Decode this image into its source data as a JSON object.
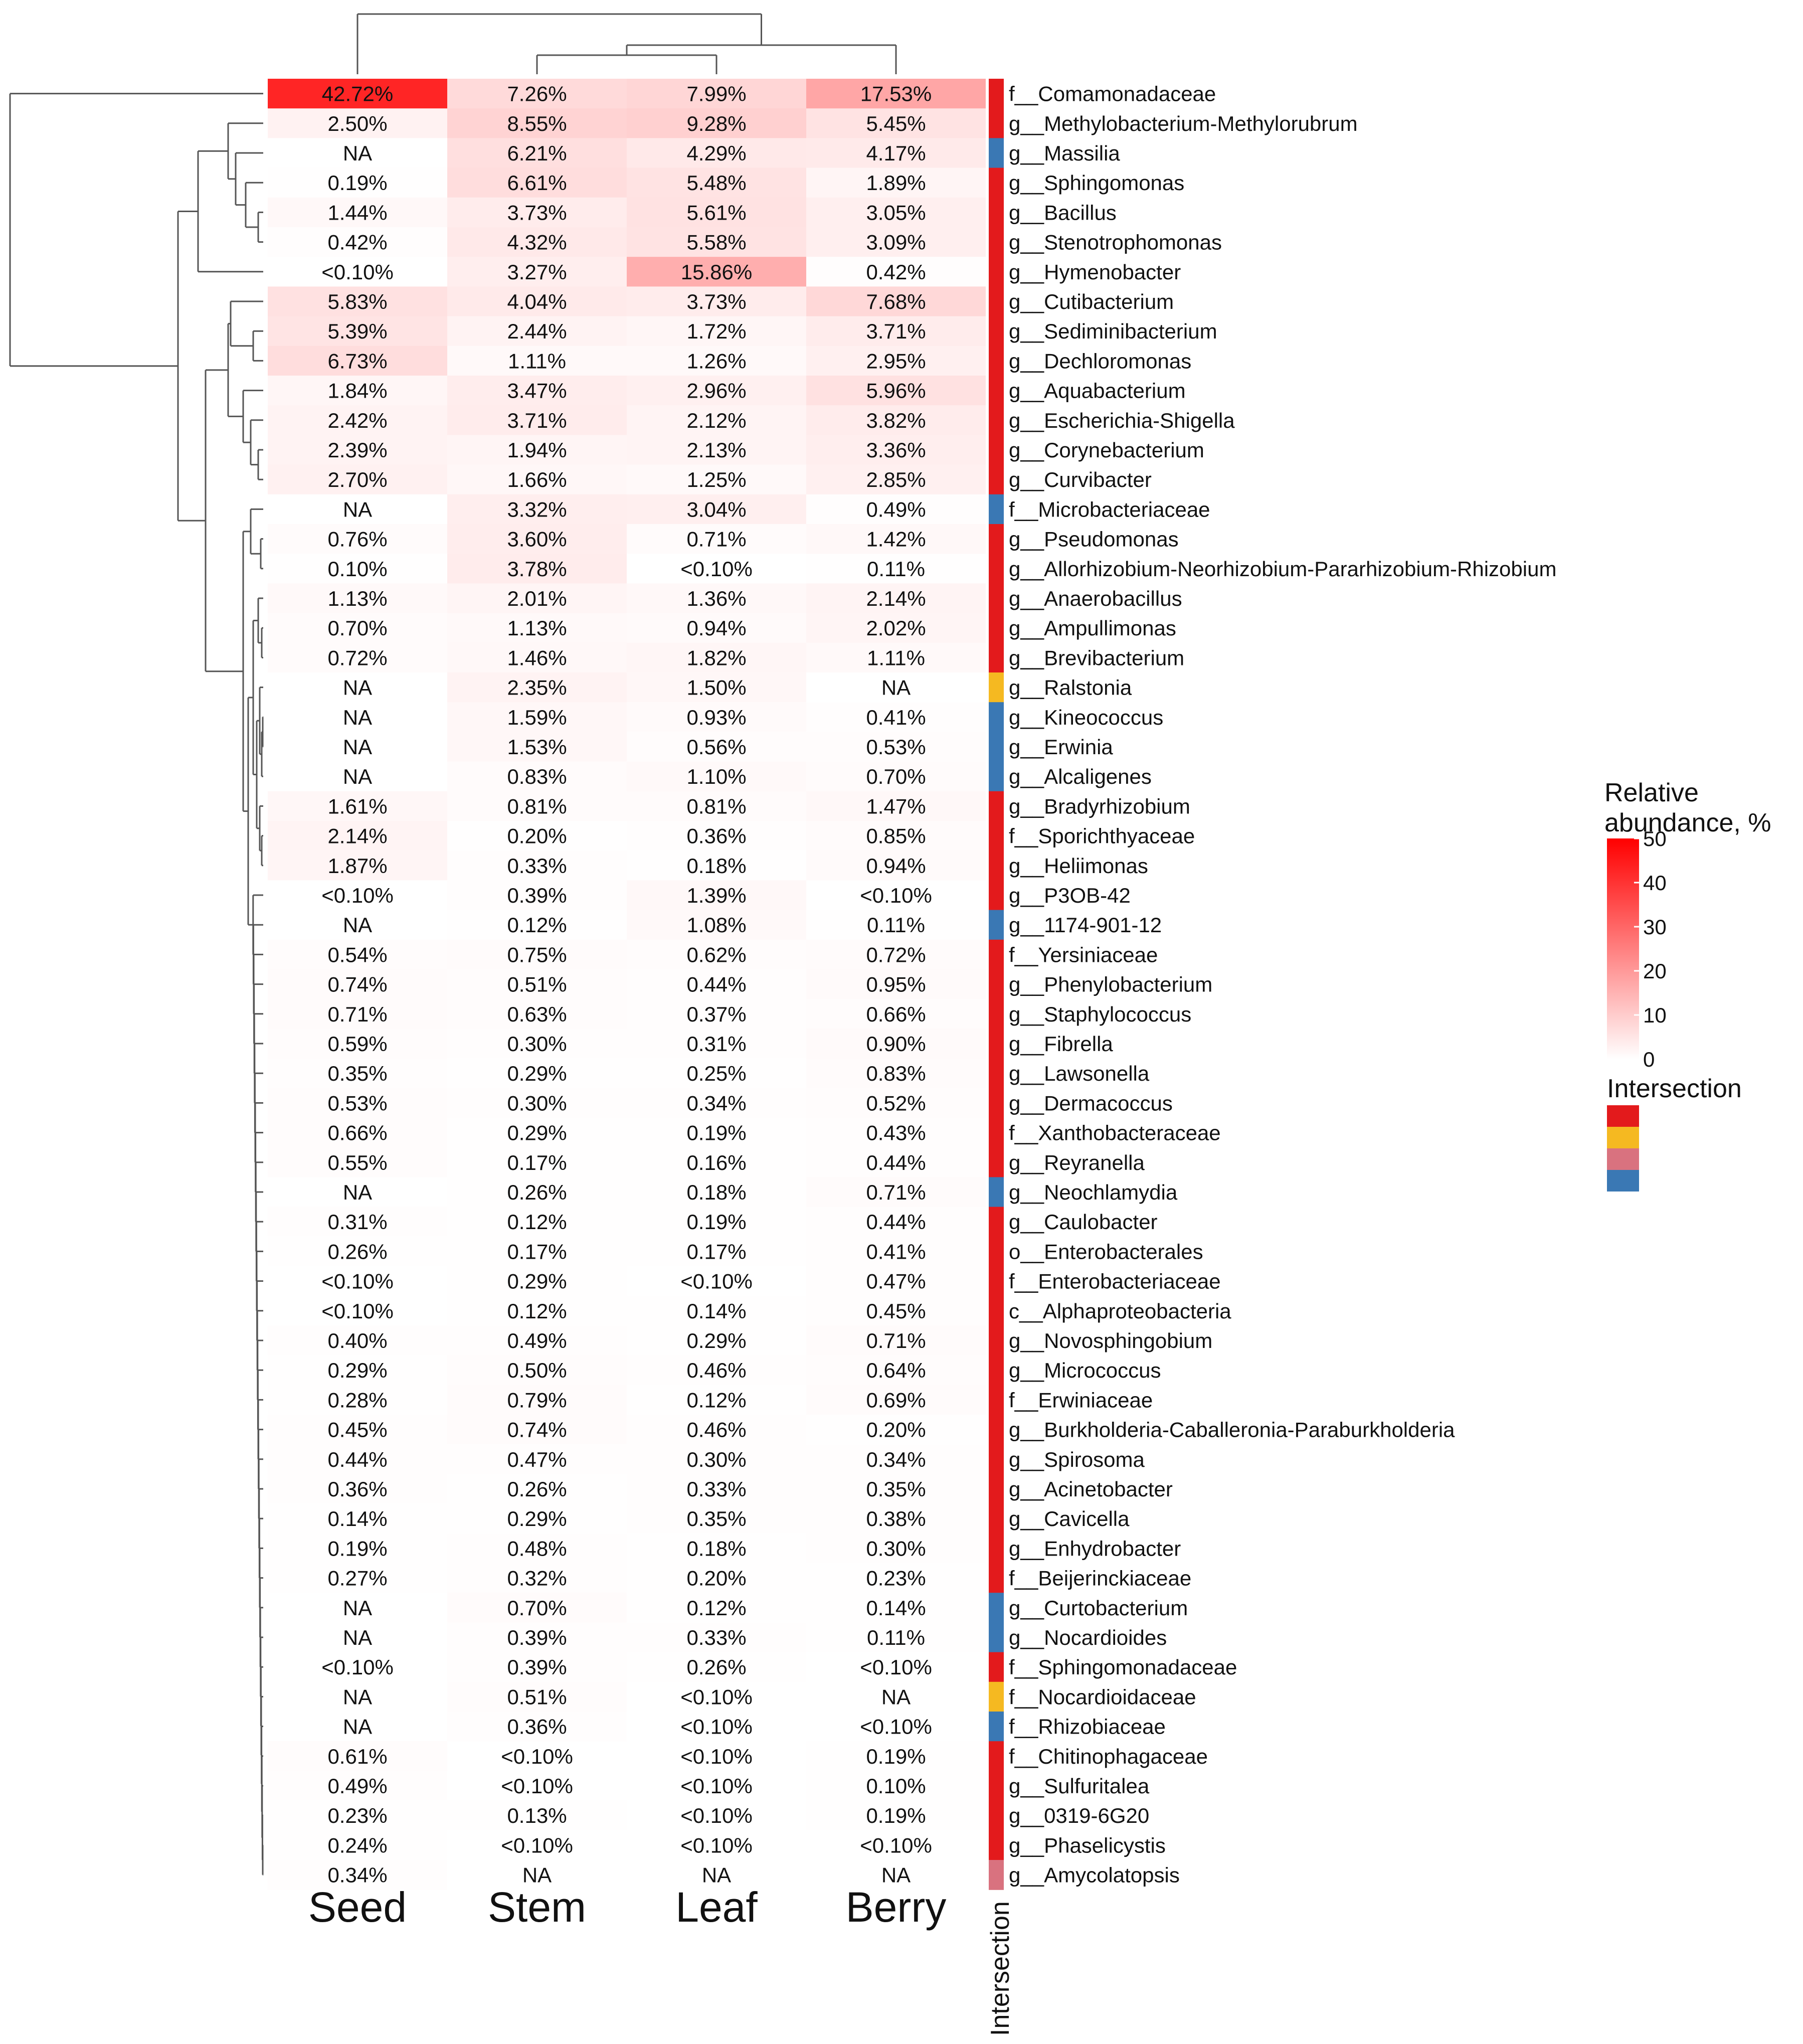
{
  "chart_data": {
    "type": "heatmap",
    "columns": [
      "Seed",
      "Stem",
      "Leaf",
      "Berry"
    ],
    "intersection_label": "Intersection",
    "colorbar": {
      "title": "Relative abundance, %",
      "min": 0,
      "max": 50,
      "ticks": [
        "0",
        "10",
        "20",
        "30",
        "40",
        "50"
      ],
      "low_color": "#ffffff",
      "high_color": "#ff0000"
    },
    "intersection_legend": {
      "title": "Intersection",
      "colors": [
        "#e31a1c",
        "#f5b921",
        "#d9727f",
        "#3a78b4"
      ]
    },
    "rows": [
      {
        "taxon": "f__Comamonadaceae",
        "values": [
          42.72,
          7.26,
          7.99,
          17.53
        ],
        "labels": [
          "42.72%",
          "7.26%",
          "7.99%",
          "17.53%"
        ],
        "intersection": 0
      },
      {
        "taxon": "g__Methylobacterium-Methylorubrum",
        "values": [
          2.5,
          8.55,
          9.28,
          5.45
        ],
        "labels": [
          "2.50%",
          "8.55%",
          "9.28%",
          "5.45%"
        ],
        "intersection": 0
      },
      {
        "taxon": "g__Massilia",
        "values": [
          null,
          6.21,
          4.29,
          4.17
        ],
        "labels": [
          "NA",
          "6.21%",
          "4.29%",
          "4.17%"
        ],
        "intersection": 3
      },
      {
        "taxon": "g__Sphingomonas",
        "values": [
          0.19,
          6.61,
          5.48,
          1.89
        ],
        "labels": [
          "0.19%",
          "6.61%",
          "5.48%",
          "1.89%"
        ],
        "intersection": 0
      },
      {
        "taxon": "g__Bacillus",
        "values": [
          1.44,
          3.73,
          5.61,
          3.05
        ],
        "labels": [
          "1.44%",
          "3.73%",
          "5.61%",
          "3.05%"
        ],
        "intersection": 0
      },
      {
        "taxon": "g__Stenotrophomonas",
        "values": [
          0.42,
          4.32,
          5.58,
          3.09
        ],
        "labels": [
          "0.42%",
          "4.32%",
          "5.58%",
          "3.09%"
        ],
        "intersection": 0
      },
      {
        "taxon": "g__Hymenobacter",
        "values": [
          0.05,
          3.27,
          15.86,
          0.42
        ],
        "labels": [
          "<0.10%",
          "3.27%",
          "15.86%",
          "0.42%"
        ],
        "intersection": 0
      },
      {
        "taxon": "g__Cutibacterium",
        "values": [
          5.83,
          4.04,
          3.73,
          7.68
        ],
        "labels": [
          "5.83%",
          "4.04%",
          "3.73%",
          "7.68%"
        ],
        "intersection": 0
      },
      {
        "taxon": "g__Sediminibacterium",
        "values": [
          5.39,
          2.44,
          1.72,
          3.71
        ],
        "labels": [
          "5.39%",
          "2.44%",
          "1.72%",
          "3.71%"
        ],
        "intersection": 0
      },
      {
        "taxon": "g__Dechloromonas",
        "values": [
          6.73,
          1.11,
          1.26,
          2.95
        ],
        "labels": [
          "6.73%",
          "1.11%",
          "1.26%",
          "2.95%"
        ],
        "intersection": 0
      },
      {
        "taxon": "g__Aquabacterium",
        "values": [
          1.84,
          3.47,
          2.96,
          5.96
        ],
        "labels": [
          "1.84%",
          "3.47%",
          "2.96%",
          "5.96%"
        ],
        "intersection": 0
      },
      {
        "taxon": "g__Escherichia-Shigella",
        "values": [
          2.42,
          3.71,
          2.12,
          3.82
        ],
        "labels": [
          "2.42%",
          "3.71%",
          "2.12%",
          "3.82%"
        ],
        "intersection": 0
      },
      {
        "taxon": "g__Corynebacterium",
        "values": [
          2.39,
          1.94,
          2.13,
          3.36
        ],
        "labels": [
          "2.39%",
          "1.94%",
          "2.13%",
          "3.36%"
        ],
        "intersection": 0
      },
      {
        "taxon": "g__Curvibacter",
        "values": [
          2.7,
          1.66,
          1.25,
          2.85
        ],
        "labels": [
          "2.70%",
          "1.66%",
          "1.25%",
          "2.85%"
        ],
        "intersection": 0
      },
      {
        "taxon": "f__Microbacteriaceae",
        "values": [
          null,
          3.32,
          3.04,
          0.49
        ],
        "labels": [
          "NA",
          "3.32%",
          "3.04%",
          "0.49%"
        ],
        "intersection": 3
      },
      {
        "taxon": "g__Pseudomonas",
        "values": [
          0.76,
          3.6,
          0.71,
          1.42
        ],
        "labels": [
          "0.76%",
          "3.60%",
          "0.71%",
          "1.42%"
        ],
        "intersection": 0
      },
      {
        "taxon": "g__Allorhizobium-Neorhizobium-Pararhizobium-Rhizobium",
        "values": [
          0.1,
          3.78,
          0.05,
          0.11
        ],
        "labels": [
          "0.10%",
          "3.78%",
          "<0.10%",
          "0.11%"
        ],
        "intersection": 0
      },
      {
        "taxon": "g__Anaerobacillus",
        "values": [
          1.13,
          2.01,
          1.36,
          2.14
        ],
        "labels": [
          "1.13%",
          "2.01%",
          "1.36%",
          "2.14%"
        ],
        "intersection": 0
      },
      {
        "taxon": "g__Ampullimonas",
        "values": [
          0.7,
          1.13,
          0.94,
          2.02
        ],
        "labels": [
          "0.70%",
          "1.13%",
          "0.94%",
          "2.02%"
        ],
        "intersection": 0
      },
      {
        "taxon": "g__Brevibacterium",
        "values": [
          0.72,
          1.46,
          1.82,
          1.11
        ],
        "labels": [
          "0.72%",
          "1.46%",
          "1.82%",
          "1.11%"
        ],
        "intersection": 0
      },
      {
        "taxon": "g__Ralstonia",
        "values": [
          null,
          2.35,
          1.5,
          null
        ],
        "labels": [
          "NA",
          "2.35%",
          "1.50%",
          "NA"
        ],
        "intersection": 1
      },
      {
        "taxon": "g__Kineococcus",
        "values": [
          null,
          1.59,
          0.93,
          0.41
        ],
        "labels": [
          "NA",
          "1.59%",
          "0.93%",
          "0.41%"
        ],
        "intersection": 3
      },
      {
        "taxon": "g__Erwinia",
        "values": [
          null,
          1.53,
          0.56,
          0.53
        ],
        "labels": [
          "NA",
          "1.53%",
          "0.56%",
          "0.53%"
        ],
        "intersection": 3
      },
      {
        "taxon": "g__Alcaligenes",
        "values": [
          null,
          0.83,
          1.1,
          0.7
        ],
        "labels": [
          "NA",
          "0.83%",
          "1.10%",
          "0.70%"
        ],
        "intersection": 3
      },
      {
        "taxon": "g__Bradyrhizobium",
        "values": [
          1.61,
          0.81,
          0.81,
          1.47
        ],
        "labels": [
          "1.61%",
          "0.81%",
          "0.81%",
          "1.47%"
        ],
        "intersection": 0
      },
      {
        "taxon": "f__Sporichthyaceae",
        "values": [
          2.14,
          0.2,
          0.36,
          0.85
        ],
        "labels": [
          "2.14%",
          "0.20%",
          "0.36%",
          "0.85%"
        ],
        "intersection": 0
      },
      {
        "taxon": "g__Heliimonas",
        "values": [
          1.87,
          0.33,
          0.18,
          0.94
        ],
        "labels": [
          "1.87%",
          "0.33%",
          "0.18%",
          "0.94%"
        ],
        "intersection": 0
      },
      {
        "taxon": "g__P3OB-42",
        "values": [
          0.05,
          0.39,
          1.39,
          0.05
        ],
        "labels": [
          "<0.10%",
          "0.39%",
          "1.39%",
          "<0.10%"
        ],
        "intersection": 0
      },
      {
        "taxon": "g__1174-901-12",
        "values": [
          null,
          0.12,
          1.08,
          0.11
        ],
        "labels": [
          "NA",
          "0.12%",
          "1.08%",
          "0.11%"
        ],
        "intersection": 3
      },
      {
        "taxon": "f__Yersiniaceae",
        "values": [
          0.54,
          0.75,
          0.62,
          0.72
        ],
        "labels": [
          "0.54%",
          "0.75%",
          "0.62%",
          "0.72%"
        ],
        "intersection": 0
      },
      {
        "taxon": "g__Phenylobacterium",
        "values": [
          0.74,
          0.51,
          0.44,
          0.95
        ],
        "labels": [
          "0.74%",
          "0.51%",
          "0.44%",
          "0.95%"
        ],
        "intersection": 0
      },
      {
        "taxon": "g__Staphylococcus",
        "values": [
          0.71,
          0.63,
          0.37,
          0.66
        ],
        "labels": [
          "0.71%",
          "0.63%",
          "0.37%",
          "0.66%"
        ],
        "intersection": 0
      },
      {
        "taxon": "g__Fibrella",
        "values": [
          0.59,
          0.3,
          0.31,
          0.9
        ],
        "labels": [
          "0.59%",
          "0.30%",
          "0.31%",
          "0.90%"
        ],
        "intersection": 0
      },
      {
        "taxon": "g__Lawsonella",
        "values": [
          0.35,
          0.29,
          0.25,
          0.83
        ],
        "labels": [
          "0.35%",
          "0.29%",
          "0.25%",
          "0.83%"
        ],
        "intersection": 0
      },
      {
        "taxon": "g__Dermacoccus",
        "values": [
          0.53,
          0.3,
          0.34,
          0.52
        ],
        "labels": [
          "0.53%",
          "0.30%",
          "0.34%",
          "0.52%"
        ],
        "intersection": 0
      },
      {
        "taxon": "f__Xanthobacteraceae",
        "values": [
          0.66,
          0.29,
          0.19,
          0.43
        ],
        "labels": [
          "0.66%",
          "0.29%",
          "0.19%",
          "0.43%"
        ],
        "intersection": 0
      },
      {
        "taxon": "g__Reyranella",
        "values": [
          0.55,
          0.17,
          0.16,
          0.44
        ],
        "labels": [
          "0.55%",
          "0.17%",
          "0.16%",
          "0.44%"
        ],
        "intersection": 0
      },
      {
        "taxon": "g__Neochlamydia",
        "values": [
          null,
          0.26,
          0.18,
          0.71
        ],
        "labels": [
          "NA",
          "0.26%",
          "0.18%",
          "0.71%"
        ],
        "intersection": 3
      },
      {
        "taxon": "g__Caulobacter",
        "values": [
          0.31,
          0.12,
          0.19,
          0.44
        ],
        "labels": [
          "0.31%",
          "0.12%",
          "0.19%",
          "0.44%"
        ],
        "intersection": 0
      },
      {
        "taxon": "o__Enterobacterales",
        "values": [
          0.26,
          0.17,
          0.17,
          0.41
        ],
        "labels": [
          "0.26%",
          "0.17%",
          "0.17%",
          "0.41%"
        ],
        "intersection": 0
      },
      {
        "taxon": "f__Enterobacteriaceae",
        "values": [
          0.05,
          0.29,
          0.05,
          0.47
        ],
        "labels": [
          "<0.10%",
          "0.29%",
          "<0.10%",
          "0.47%"
        ],
        "intersection": 0
      },
      {
        "taxon": "c__Alphaproteobacteria",
        "values": [
          0.05,
          0.12,
          0.14,
          0.45
        ],
        "labels": [
          "<0.10%",
          "0.12%",
          "0.14%",
          "0.45%"
        ],
        "intersection": 0
      },
      {
        "taxon": "g__Novosphingobium",
        "values": [
          0.4,
          0.49,
          0.29,
          0.71
        ],
        "labels": [
          "0.40%",
          "0.49%",
          "0.29%",
          "0.71%"
        ],
        "intersection": 0
      },
      {
        "taxon": "g__Micrococcus",
        "values": [
          0.29,
          0.5,
          0.46,
          0.64
        ],
        "labels": [
          "0.29%",
          "0.50%",
          "0.46%",
          "0.64%"
        ],
        "intersection": 0
      },
      {
        "taxon": "f__Erwiniaceae",
        "values": [
          0.28,
          0.79,
          0.12,
          0.69
        ],
        "labels": [
          "0.28%",
          "0.79%",
          "0.12%",
          "0.69%"
        ],
        "intersection": 0
      },
      {
        "taxon": "g__Burkholderia-Caballeronia-Paraburkholderia",
        "values": [
          0.45,
          0.74,
          0.46,
          0.2
        ],
        "labels": [
          "0.45%",
          "0.74%",
          "0.46%",
          "0.20%"
        ],
        "intersection": 0
      },
      {
        "taxon": "g__Spirosoma",
        "values": [
          0.44,
          0.47,
          0.3,
          0.34
        ],
        "labels": [
          "0.44%",
          "0.47%",
          "0.30%",
          "0.34%"
        ],
        "intersection": 0
      },
      {
        "taxon": "g__Acinetobacter",
        "values": [
          0.36,
          0.26,
          0.33,
          0.35
        ],
        "labels": [
          "0.36%",
          "0.26%",
          "0.33%",
          "0.35%"
        ],
        "intersection": 0
      },
      {
        "taxon": "g__Cavicella",
        "values": [
          0.14,
          0.29,
          0.35,
          0.38
        ],
        "labels": [
          "0.14%",
          "0.29%",
          "0.35%",
          "0.38%"
        ],
        "intersection": 0
      },
      {
        "taxon": "g__Enhydrobacter",
        "values": [
          0.19,
          0.48,
          0.18,
          0.3
        ],
        "labels": [
          "0.19%",
          "0.48%",
          "0.18%",
          "0.30%"
        ],
        "intersection": 0
      },
      {
        "taxon": "f__Beijerinckiaceae",
        "values": [
          0.27,
          0.32,
          0.2,
          0.23
        ],
        "labels": [
          "0.27%",
          "0.32%",
          "0.20%",
          "0.23%"
        ],
        "intersection": 0
      },
      {
        "taxon": "g__Curtobacterium",
        "values": [
          null,
          0.7,
          0.12,
          0.14
        ],
        "labels": [
          "NA",
          "0.70%",
          "0.12%",
          "0.14%"
        ],
        "intersection": 3
      },
      {
        "taxon": "g__Nocardioides",
        "values": [
          null,
          0.39,
          0.33,
          0.11
        ],
        "labels": [
          "NA",
          "0.39%",
          "0.33%",
          "0.11%"
        ],
        "intersection": 3
      },
      {
        "taxon": "f__Sphingomonadaceae",
        "values": [
          0.05,
          0.39,
          0.26,
          0.05
        ],
        "labels": [
          "<0.10%",
          "0.39%",
          "0.26%",
          "<0.10%"
        ],
        "intersection": 0
      },
      {
        "taxon": "f__Nocardioidaceae",
        "values": [
          null,
          0.51,
          0.05,
          null
        ],
        "labels": [
          "NA",
          "0.51%",
          "<0.10%",
          "NA"
        ],
        "intersection": 1
      },
      {
        "taxon": "f__Rhizobiaceae",
        "values": [
          null,
          0.36,
          0.05,
          0.05
        ],
        "labels": [
          "NA",
          "0.36%",
          "<0.10%",
          "<0.10%"
        ],
        "intersection": 3
      },
      {
        "taxon": "f__Chitinophagaceae",
        "values": [
          0.61,
          0.05,
          0.05,
          0.19
        ],
        "labels": [
          "0.61%",
          "<0.10%",
          "<0.10%",
          "0.19%"
        ],
        "intersection": 0
      },
      {
        "taxon": "g__Sulfuritalea",
        "values": [
          0.49,
          0.05,
          0.05,
          0.1
        ],
        "labels": [
          "0.49%",
          "<0.10%",
          "<0.10%",
          "0.10%"
        ],
        "intersection": 0
      },
      {
        "taxon": "g__0319-6G20",
        "values": [
          0.23,
          0.13,
          0.05,
          0.19
        ],
        "labels": [
          "0.23%",
          "0.13%",
          "<0.10%",
          "0.19%"
        ],
        "intersection": 0
      },
      {
        "taxon": "g__Phaselicystis",
        "values": [
          0.24,
          0.05,
          0.05,
          0.05
        ],
        "labels": [
          "0.24%",
          "<0.10%",
          "<0.10%",
          "<0.10%"
        ],
        "intersection": 0
      },
      {
        "taxon": "g__Amycolatopsis",
        "values": [
          0.34,
          null,
          null,
          null
        ],
        "labels": [
          "0.34%",
          "NA",
          "NA",
          "NA"
        ],
        "intersection": 2
      }
    ]
  }
}
